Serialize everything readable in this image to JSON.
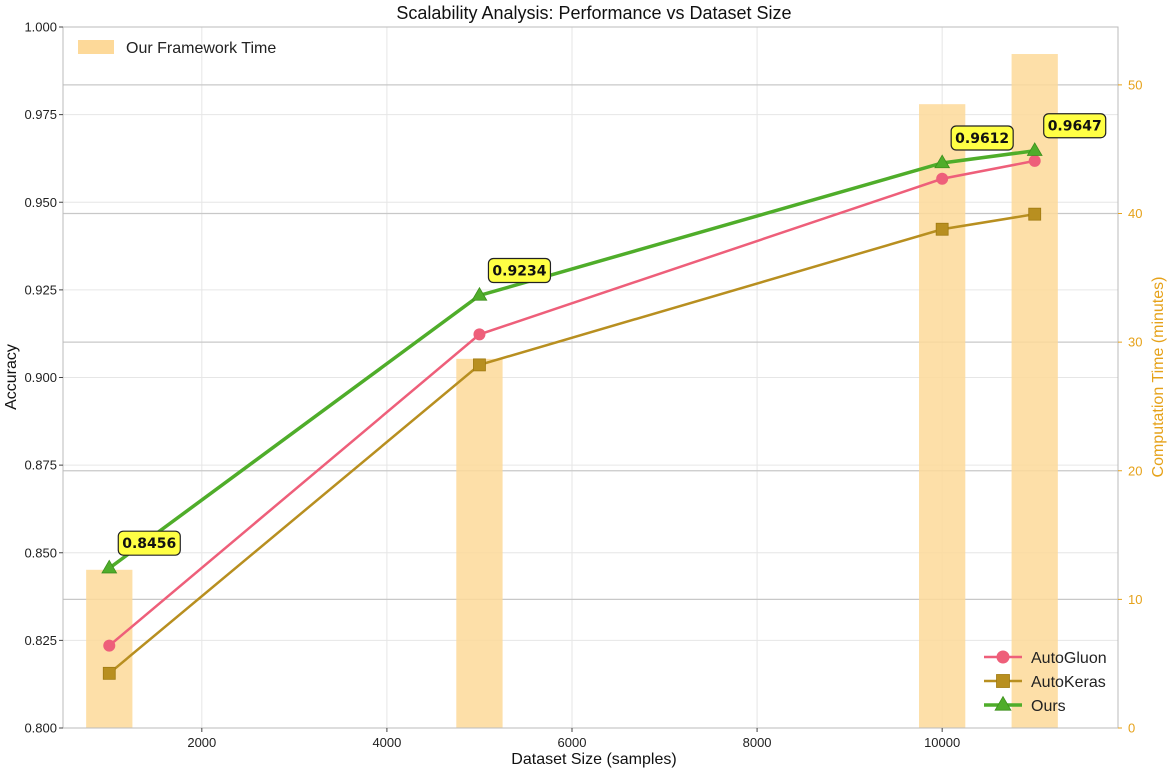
{
  "chart_data": {
    "type": "line",
    "title": "Scalability Analysis: Performance vs Dataset Size",
    "xlabel": "Dataset Size (samples)",
    "ylabel": "Accuracy",
    "y2label": "Computation Time (minutes)",
    "xlim": [
      500,
      11900
    ],
    "ylim": [
      0.8,
      1.0
    ],
    "y2lim": [
      0,
      54.5
    ],
    "x_ticks": [
      2000,
      4000,
      6000,
      8000,
      10000
    ],
    "y_ticks": [
      0.8,
      0.825,
      0.85,
      0.875,
      0.9,
      0.925,
      0.95,
      0.975,
      1.0
    ],
    "y_tick_labels": [
      "0.800",
      "0.825",
      "0.850",
      "0.875",
      "0.900",
      "0.925",
      "0.950",
      "0.975",
      "1.000"
    ],
    "y2_ticks": [
      0,
      10,
      20,
      30,
      40,
      50
    ],
    "x": [
      1000,
      5000,
      10000,
      11000
    ],
    "bars": {
      "name": "Our Framework Time",
      "color": "#fdd999",
      "values": [
        12.3,
        28.7,
        48.5,
        52.4
      ]
    },
    "series": [
      {
        "name": "AutoGluon",
        "color": "#ee5f7a",
        "marker": "circle",
        "values": [
          0.8235,
          0.9123,
          0.9567,
          0.9618
        ]
      },
      {
        "name": "AutoKeras",
        "color": "#b88f20",
        "marker": "square",
        "values": [
          0.8156,
          0.9036,
          0.9423,
          0.9466
        ]
      },
      {
        "name": "Ours",
        "color": "#4fad2a",
        "marker": "triangle",
        "values": [
          0.8456,
          0.9234,
          0.9612,
          0.9647
        ]
      }
    ],
    "annotations": [
      "0.8456",
      "0.9234",
      "0.9612",
      "0.9647"
    ],
    "annotation_color": "#ffff44",
    "grid": true,
    "legend_bars_placement": "top-left",
    "legend_lines_placement": "bottom-right"
  }
}
